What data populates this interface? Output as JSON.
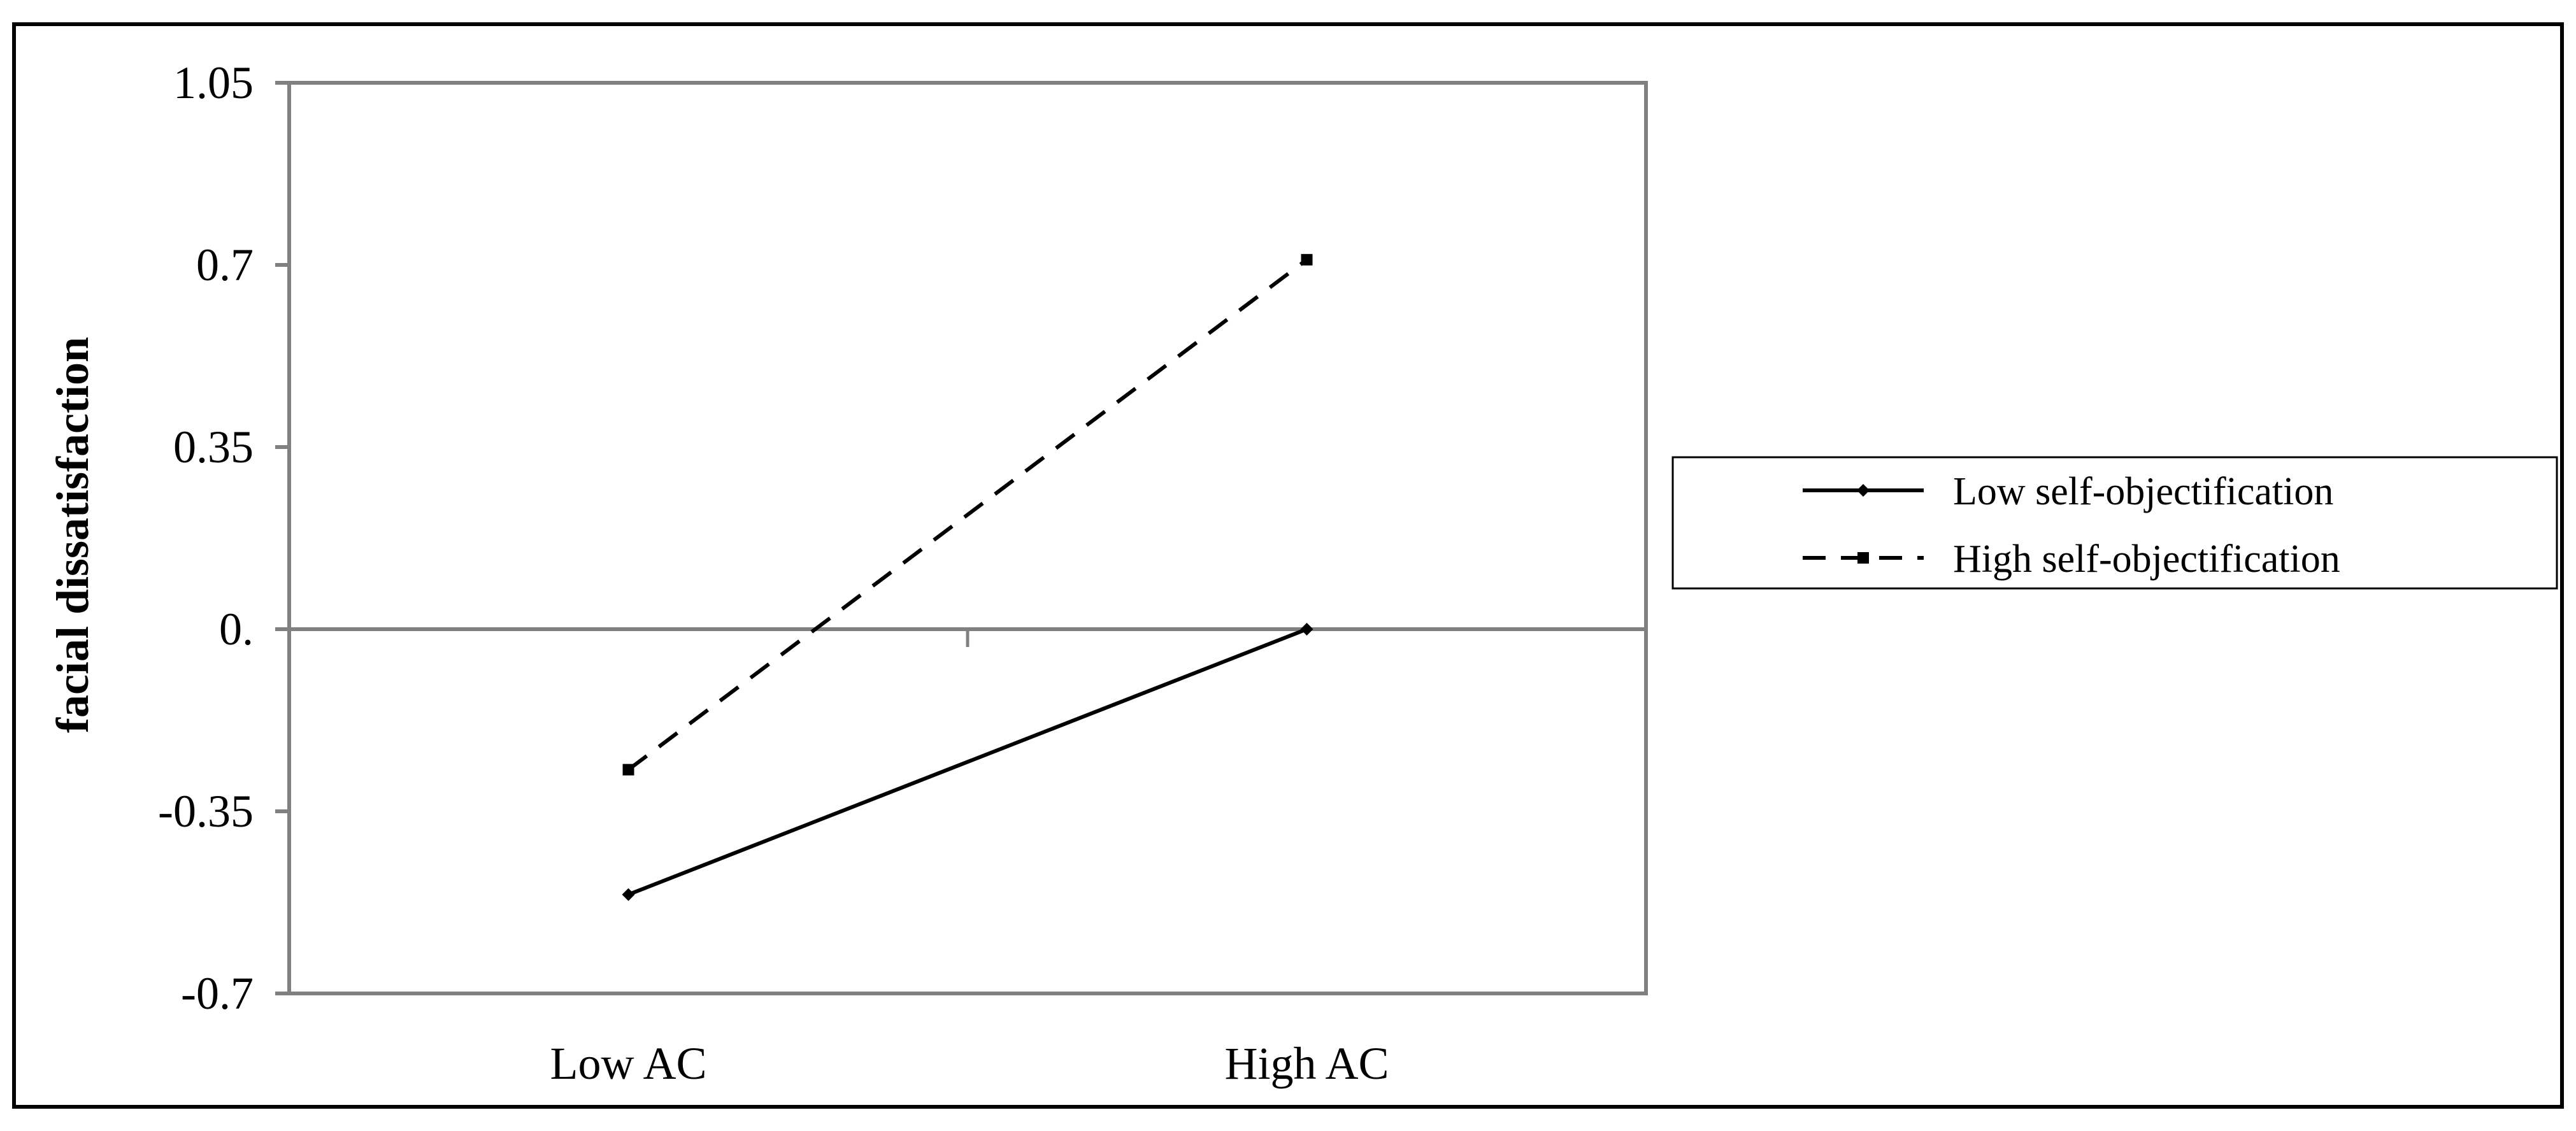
{
  "chart_data": {
    "type": "line",
    "ylabel": "facial dissatisfaction",
    "xlabel": "",
    "title": "",
    "categories": [
      "Low AC",
      "High AC"
    ],
    "y_ticks": [
      "1.05",
      "0.7",
      "0.35",
      "0.",
      "-0.35",
      "-0.7"
    ],
    "y_tick_values": [
      1.05,
      0.7,
      0.35,
      0,
      -0.35,
      -0.7
    ],
    "ylim": [
      -0.7,
      1.05
    ],
    "grid": false,
    "legend_position": "right",
    "series": [
      {
        "name": "Low self-objectification",
        "values": [
          -0.51,
          0.0
        ],
        "line_style": "solid",
        "marker": "diamond",
        "color": "#000000"
      },
      {
        "name": "High self-objectification",
        "values": [
          -0.27,
          0.71
        ],
        "line_style": "dashed",
        "marker": "square",
        "color": "#000000"
      }
    ]
  },
  "colors": {
    "axis": "#808080",
    "line": "#000000",
    "border": "#000000"
  }
}
